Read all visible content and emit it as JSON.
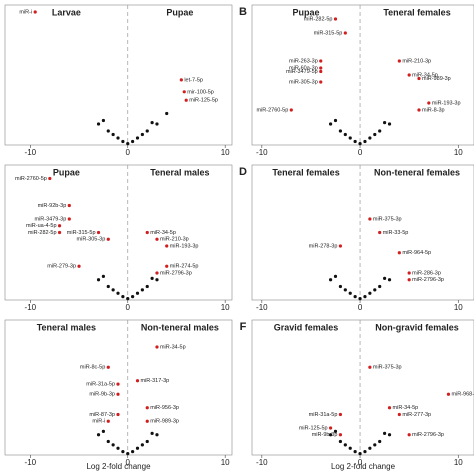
{
  "chart_data": [
    {
      "type": "scatter",
      "title_left": "Larvae",
      "title_right": "Pupae",
      "xlim": [
        -12.6,
        10.7
      ],
      "ylim": [
        0,
        20
      ],
      "xticks": [
        -10,
        0,
        10
      ],
      "x_label": null,
      "series": [
        {
          "color": "#d11f1f",
          "x": [
            -9.5,
            5.5,
            5.8,
            6.0
          ],
          "values": [
            19,
            9.3,
            7.6,
            6.4
          ],
          "point_labels": [
            "miR-i",
            "let-7-5p",
            "mir-100-5p",
            "miR-125-5p"
          ]
        },
        {
          "color": "#111111",
          "x": [
            -3,
            -2.5,
            -2,
            -1.5,
            -1,
            -0.5,
            0,
            0.5,
            1,
            1.5,
            2,
            2.5,
            3,
            4
          ],
          "values": [
            3,
            3.5,
            2,
            1.5,
            1,
            0.5,
            0.2,
            0.5,
            1,
            1.5,
            2,
            3.2,
            3,
            4.5
          ]
        }
      ]
    },
    {
      "type": "scatter",
      "panel_letter": "B",
      "title_left": "Pupae",
      "title_right": "Teneral females",
      "xlim": [
        -11,
        11.6
      ],
      "ylim": [
        0,
        20
      ],
      "xticks": [
        -10,
        0,
        10
      ],
      "series": [
        {
          "color": "#d11f1f",
          "x": [
            -2.5,
            -1.5,
            -4,
            -4,
            -4,
            -4,
            -7,
            4,
            5,
            6,
            7,
            6
          ],
          "values": [
            18,
            16,
            12,
            11,
            10.5,
            9,
            5,
            12,
            10,
            9.5,
            6,
            5
          ],
          "point_labels": [
            "miR-282-5p",
            "miR-315-5p",
            "miR-263-3p",
            "miR-60a-3p",
            "miR-3479-5p",
            "miR-305-3p",
            "miR-2760-5p",
            "miR-210-3p",
            "miR-34-5p",
            "miR-989-3p",
            "miR-193-3p",
            "miR-8-3p"
          ]
        },
        {
          "color": "#111111",
          "x": [
            -3,
            -2.5,
            -2,
            -1.5,
            -1,
            -0.5,
            0,
            0.5,
            1,
            1.5,
            2,
            2.5,
            3
          ],
          "values": [
            3,
            3.5,
            2,
            1.5,
            1,
            0.5,
            0.2,
            0.5,
            1,
            1.5,
            2,
            3.2,
            3
          ]
        }
      ]
    },
    {
      "type": "scatter",
      "title_left": "Pupae",
      "title_right": "Teneral males",
      "xlim": [
        -12.6,
        10.7
      ],
      "ylim": [
        0,
        20
      ],
      "xticks": [
        -10,
        0,
        10
      ],
      "series": [
        {
          "color": "#d11f1f",
          "x": [
            -8,
            -6,
            -6,
            -7,
            -7,
            -3,
            -2,
            2,
            3,
            4,
            -5,
            3,
            4
          ],
          "values": [
            18,
            14,
            12,
            11,
            10,
            10,
            9,
            10,
            9,
            8,
            5,
            4,
            5
          ],
          "point_labels": [
            "miR-2760-5p",
            "miR-92b-3p",
            "miR-3479-3p",
            "miR-ua-4-5p",
            "miR-282-5p",
            "miR-315-5p",
            "miR-305-3p",
            "miR-34-5p",
            "miR-210-3p",
            "miR-193-3p",
            "miR-279-3p",
            "miR-2796-3p",
            "miR-274-5p"
          ]
        },
        {
          "color": "#111111",
          "x": [
            -3,
            -2.5,
            -2,
            -1.5,
            -1,
            -0.5,
            0,
            0.5,
            1,
            1.5,
            2,
            2.5,
            3
          ],
          "values": [
            3,
            3.5,
            2,
            1.5,
            1,
            0.5,
            0.2,
            0.5,
            1,
            1.5,
            2,
            3.2,
            3
          ]
        }
      ]
    },
    {
      "type": "scatter",
      "panel_letter": "D",
      "title_left": "Teneral females",
      "title_right": "Non-teneral females",
      "xlim": [
        -11,
        11.6
      ],
      "ylim": [
        0,
        20
      ],
      "xticks": [
        -10,
        0,
        10
      ],
      "series": [
        {
          "color": "#d11f1f",
          "x": [
            1,
            2,
            -2,
            4,
            5,
            5
          ],
          "values": [
            12,
            10,
            8,
            7,
            4,
            3
          ],
          "point_labels": [
            "miR-375-3p",
            "miR-33-5p",
            "miR-278-3p",
            "miR-964-5p",
            "miR-286-3p",
            "miR-2796-3p"
          ]
        },
        {
          "color": "#111111",
          "x": [
            -3,
            -2.5,
            -2,
            -1.5,
            -1,
            -0.5,
            0,
            0.5,
            1,
            1.5,
            2,
            2.5,
            3
          ],
          "values": [
            3,
            3.5,
            2,
            1.5,
            1,
            0.5,
            0.2,
            0.5,
            1,
            1.5,
            2,
            3.2,
            3
          ]
        }
      ]
    },
    {
      "type": "scatter",
      "title_left": "Teneral males",
      "title_right": "Non-teneral males",
      "xlim": [
        -12.6,
        10.7
      ],
      "ylim": [
        0,
        20
      ],
      "xticks": [
        -10,
        0,
        10
      ],
      "x_label": "Log 2-fold change",
      "series": [
        {
          "color": "#d11f1f",
          "x": [
            3,
            -2,
            1,
            -1,
            -1,
            2,
            -1,
            -2,
            2
          ],
          "values": [
            16,
            13,
            11,
            10.5,
            9,
            7,
            6,
            5,
            5
          ],
          "point_labels": [
            "miR-34-5p",
            "miR-8c-5p",
            "miR-317-3p",
            "miR-31a-5p",
            "miR-9b-3p",
            "miR-956-3p",
            "miR-87-3p",
            "miR-i",
            "miR-989-3p"
          ]
        },
        {
          "color": "#111111",
          "x": [
            -3,
            -2.5,
            -2,
            -1.5,
            -1,
            -0.5,
            0,
            0.5,
            1,
            1.5,
            2,
            2.5,
            3
          ],
          "values": [
            3,
            3.5,
            2,
            1.5,
            1,
            0.5,
            0.2,
            0.5,
            1,
            1.5,
            2,
            3.2,
            3
          ]
        }
      ]
    },
    {
      "type": "scatter",
      "panel_letter": "F",
      "title_left": "Gravid females",
      "title_right": "Non-gravid females",
      "xlim": [
        -11,
        11.6
      ],
      "ylim": [
        0,
        20
      ],
      "xticks": [
        -10,
        0,
        10
      ],
      "x_label": "Log 2-fold change",
      "series": [
        {
          "color": "#d11f1f",
          "x": [
            1,
            9,
            3,
            -2,
            4,
            -3,
            -2,
            5
          ],
          "values": [
            13,
            9,
            7,
            6,
            6,
            4,
            3,
            3
          ],
          "point_labels": [
            "miR-375-3p",
            "miR-968-5p",
            "miR-34-5p",
            "miR-31a-5p",
            "miR-277-3p",
            "miR-125-5p",
            "miR-9b-3p",
            "miR-2796-3p"
          ]
        },
        {
          "color": "#111111",
          "x": [
            -3,
            -2.5,
            -2,
            -1.5,
            -1,
            -0.5,
            0,
            0.5,
            1,
            1.5,
            2,
            2.5,
            3
          ],
          "values": [
            3,
            3.5,
            2,
            1.5,
            1,
            0.5,
            0.2,
            0.5,
            1,
            1.5,
            2,
            3.2,
            3
          ]
        }
      ]
    }
  ]
}
